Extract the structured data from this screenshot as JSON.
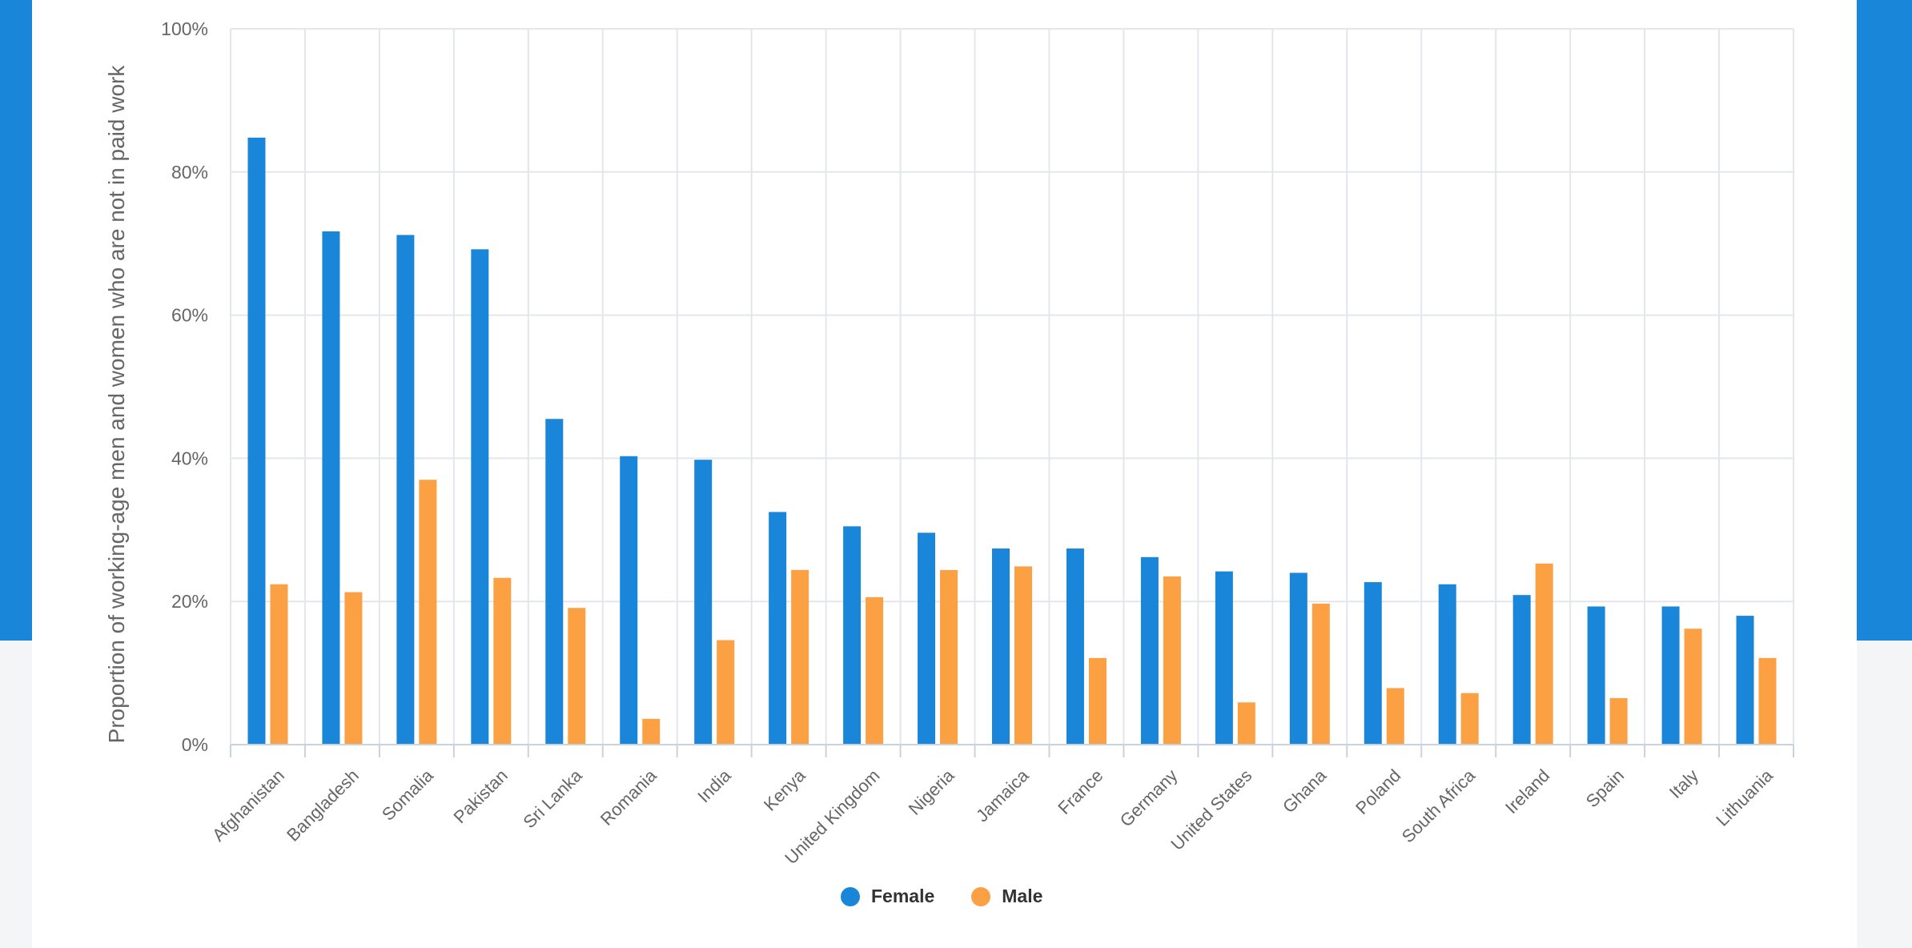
{
  "colors": {
    "female": "#1a86d9",
    "male": "#fba143",
    "frame": "#1a86d9",
    "grid": "#e3e6ea",
    "axis_text": "#666666"
  },
  "legend": {
    "female_label": "Female",
    "male_label": "Male"
  },
  "chart_data": {
    "type": "bar",
    "ylabel": "Proportion of working-age men and women who are not in paid work",
    "xlabel": "",
    "ylim": [
      0,
      100
    ],
    "y_ticks": [
      "0%",
      "20%",
      "40%",
      "60%",
      "80%",
      "100%"
    ],
    "grid": true,
    "legend_position": "bottom-center",
    "categories": [
      "Afghanistan",
      "Bangladesh",
      "Somalia",
      "Pakistan",
      "Sri Lanka",
      "Romania",
      "India",
      "Kenya",
      "United Kingdom",
      "Nigeria",
      "Jamaica",
      "France",
      "Germany",
      "United States",
      "Ghana",
      "Poland",
      "South Africa",
      "Ireland",
      "Spain",
      "Italy",
      "Lithuania"
    ],
    "series": [
      {
        "name": "Female",
        "values": [
          84.8,
          71.7,
          71.2,
          69.2,
          45.5,
          40.3,
          39.8,
          32.5,
          30.5,
          29.6,
          27.4,
          27.4,
          26.2,
          24.2,
          24.0,
          22.7,
          22.4,
          20.9,
          19.3,
          19.3,
          18.0
        ]
      },
      {
        "name": "Male",
        "values": [
          22.4,
          21.3,
          37.0,
          23.3,
          19.1,
          3.6,
          14.6,
          24.4,
          20.6,
          24.4,
          24.9,
          12.1,
          23.5,
          5.9,
          19.7,
          7.9,
          7.2,
          25.3,
          6.5,
          16.2,
          12.1
        ]
      }
    ]
  }
}
